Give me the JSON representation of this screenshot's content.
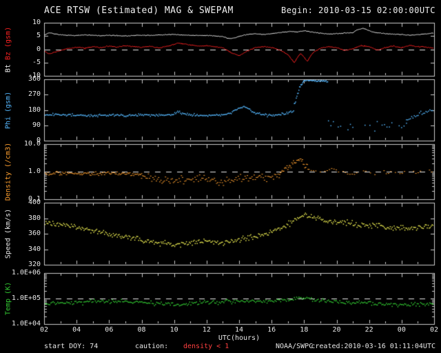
{
  "header": {
    "title": "ACE RTSW (Estimated) MAG & SWEPAM",
    "begin": "Begin: 2010-03-15 02:00:00UTC"
  },
  "footer": {
    "start_doy": "start DOY: 74",
    "caution_label": "caution:",
    "caution_value": "density < 1",
    "agency": "NOAA/SWPC",
    "created": "created:2010-03-16 01:11:04UTC"
  },
  "xaxis": {
    "label": "UTC(hours)",
    "xlim": [
      2,
      26
    ],
    "ticks": [
      2,
      4,
      6,
      8,
      10,
      12,
      14,
      16,
      18,
      20,
      22,
      24,
      26
    ],
    "tick_labels": [
      "02",
      "04",
      "06",
      "08",
      "10",
      "12",
      "14",
      "16",
      "18",
      "20",
      "22",
      "00",
      "02"
    ]
  },
  "colors": {
    "background": "#000000",
    "frame": "#cccccc",
    "dashed": "#e8e8e8",
    "caution": "#ff4040",
    "bt": "#f0f0f0",
    "bz": "#ff2222",
    "phi": "#55b8ff",
    "density": "#ffa030",
    "speed": "#e8e850",
    "temp": "#33cc33"
  },
  "chart_data": [
    {
      "id": "mag",
      "type": "line",
      "ylabel": "Bt Bz (gsm)",
      "ylabel_parts": [
        {
          "text": "Bt ",
          "color": "#f0f0f0"
        },
        {
          "text": "Bz ",
          "color": "#ff2222"
        },
        {
          "text": "(gsm)",
          "color": "#ff2222"
        }
      ],
      "yscale": "linear",
      "ylim": [
        -10,
        10
      ],
      "yticks": [
        10,
        5,
        0,
        -5,
        -10
      ],
      "ytick_labels": [
        "10",
        "5",
        "0",
        "-5",
        "-10"
      ],
      "dashed": [
        0
      ],
      "series": [
        {
          "name": "Bt",
          "color": "#f0f0f0",
          "style": "line",
          "noise": 0.18,
          "step": 0.04,
          "x": [
            2,
            2.3,
            2.6,
            3,
            3.5,
            4,
            4.5,
            5,
            5.5,
            6,
            6.5,
            7,
            7.5,
            8,
            8.5,
            9,
            9.5,
            10,
            10.5,
            11,
            11.5,
            12,
            12.5,
            13,
            13.4,
            13.8,
            14.2,
            14.6,
            15,
            15.5,
            16,
            16.4,
            16.8,
            17.2,
            17.6,
            18,
            18.4,
            18.8,
            19.2,
            19.6,
            20,
            20.5,
            21,
            21.3,
            21.6,
            21.9,
            22.2,
            22.5,
            23,
            23.5,
            24,
            24.5,
            25,
            25.5,
            26
          ],
          "y": [
            5.2,
            6.3,
            5.9,
            5.5,
            5.3,
            5.2,
            5.4,
            5.3,
            5.1,
            5.3,
            5.2,
            5.0,
            5.2,
            5.3,
            5.2,
            5.4,
            5.5,
            5.6,
            5.4,
            5.3,
            5.2,
            5.2,
            5.0,
            4.8,
            4.0,
            4.4,
            5.2,
            5.7,
            5.8,
            5.6,
            5.9,
            6.2,
            6.5,
            6.7,
            6.5,
            7.0,
            6.6,
            6.2,
            5.9,
            5.7,
            5.9,
            6.1,
            6.3,
            7.4,
            7.9,
            7.3,
            6.6,
            6.2,
            5.9,
            5.7,
            5.5,
            5.3,
            5.5,
            5.8,
            6.1
          ]
        },
        {
          "name": "Bz",
          "color": "#ff2222",
          "style": "line",
          "noise": 0.25,
          "step": 0.04,
          "x": [
            2,
            2.3,
            2.6,
            3,
            3.5,
            4,
            4.5,
            5,
            5.5,
            6,
            6.5,
            7,
            7.5,
            8,
            8.5,
            9,
            9.5,
            10,
            10.3,
            10.6,
            11,
            11.5,
            12,
            12.5,
            13,
            13.3,
            13.6,
            14,
            14.3,
            14.6,
            15,
            15.5,
            16,
            16.3,
            16.6,
            17,
            17.2,
            17.4,
            17.6,
            17.8,
            18,
            18.2,
            18.4,
            18.6,
            19,
            19.5,
            20,
            20.5,
            21,
            21.5,
            22,
            22.5,
            23,
            23.5,
            24,
            24.5,
            25,
            25.5,
            26
          ],
          "y": [
            -0.5,
            -1.8,
            -1.2,
            -0.5,
            0.3,
            0.8,
            0.4,
            1.0,
            0.6,
            1.2,
            0.8,
            1.4,
            1.0,
            0.8,
            1.2,
            0.6,
            1.0,
            1.8,
            2.4,
            2.0,
            1.6,
            1.2,
            1.4,
            1.0,
            0.6,
            -0.4,
            -1.6,
            -2.4,
            -1.4,
            -0.4,
            0.6,
            1.0,
            0.6,
            0.2,
            -0.6,
            -2.0,
            -3.5,
            -5.0,
            -3.0,
            -1.5,
            -3.0,
            -4.5,
            -2.5,
            -1.0,
            0.4,
            1.0,
            0.6,
            -0.4,
            0.2,
            1.4,
            1.0,
            -0.3,
            0.6,
            1.2,
            0.6,
            1.4,
            1.0,
            0.8,
            0.5
          ]
        }
      ]
    },
    {
      "id": "phi",
      "type": "scatter",
      "ylabel": "Phi (gsm)",
      "ylabel_parts": [
        {
          "text": "Phi (gsm)",
          "color": "#55b8ff"
        }
      ],
      "yscale": "linear",
      "ylim": [
        0,
        360
      ],
      "yticks": [
        360,
        270,
        180,
        90,
        0
      ],
      "ytick_labels": [
        "360",
        "270",
        "180",
        "90",
        "0"
      ],
      "dashed": [],
      "clampY": [
        2,
        358
      ],
      "series": [
        {
          "name": "phi-quiet",
          "color": "#55b8ff",
          "style": "scatter",
          "jitter": 8,
          "step": 0.06,
          "x": [
            2,
            3,
            4,
            5,
            6,
            7,
            8,
            9,
            10,
            10.3,
            10.6,
            11,
            12,
            13,
            13.5,
            14,
            14.3,
            14.6,
            15,
            15.5,
            16,
            16.5,
            17,
            17.4
          ],
          "y": [
            150,
            152,
            148,
            146,
            150,
            148,
            152,
            150,
            154,
            170,
            156,
            152,
            148,
            150,
            162,
            188,
            202,
            182,
            162,
            152,
            148,
            154,
            162,
            176
          ]
        },
        {
          "name": "phi-rise",
          "color": "#55b8ff",
          "style": "scatter",
          "jitter": 10,
          "step": 0.04,
          "x": [
            17.4,
            17.6,
            17.8,
            18
          ],
          "y": [
            210,
            275,
            325,
            352
          ]
        },
        {
          "name": "phi-high",
          "color": "#55b8ff",
          "style": "scatter",
          "jitter": 8,
          "step": 0.05,
          "x": [
            18,
            18.4,
            18.8,
            19.2,
            19.5
          ],
          "y": [
            352,
            357,
            349,
            353,
            342
          ]
        },
        {
          "name": "phi-scatter",
          "color": "#55b8ff",
          "style": "scatter",
          "jitter": 30,
          "step": 0.15,
          "skip": 0.35,
          "x": [
            19.5,
            20,
            20.5,
            21,
            21.5,
            22,
            22.5,
            23,
            23.5,
            24,
            24.3
          ],
          "y": [
            120,
            95,
            80,
            70,
            85,
            75,
            90,
            80,
            95,
            85,
            100
          ]
        },
        {
          "name": "phi-end",
          "color": "#55b8ff",
          "style": "scatter",
          "jitter": 13,
          "step": 0.08,
          "x": [
            24.3,
            24.8,
            25.2,
            25.6,
            26
          ],
          "y": [
            115,
            140,
            162,
            172,
            178
          ]
        }
      ]
    },
    {
      "id": "density",
      "type": "scatter",
      "ylabel": "Density (/cm3)",
      "ylabel_parts": [
        {
          "text": "Density (/cm3)",
          "color": "#ffa030"
        }
      ],
      "yscale": "log",
      "ylim": [
        0.1,
        10
      ],
      "yticks": [
        10,
        1,
        0.1
      ],
      "ytick_labels": [
        "10.0",
        "1.0",
        "0.1"
      ],
      "dashed": [
        1
      ],
      "series": [
        {
          "name": "density-early",
          "color": "#ffa030",
          "style": "scatter",
          "jitter": 0.07,
          "step": 0.06,
          "dot": [
            2,
            1
          ],
          "x": [
            2,
            3,
            4,
            5,
            6,
            7,
            8
          ],
          "y": [
            0.85,
            0.9,
            0.8,
            0.85,
            0.9,
            0.85,
            0.8
          ]
        },
        {
          "name": "density-low",
          "color": "#ffa030",
          "style": "scatter",
          "jitter": 0.16,
          "step": 0.07,
          "dot": [
            2,
            1
          ],
          "x": [
            8,
            9,
            10,
            11,
            12,
            13,
            14,
            15,
            16,
            16.5
          ],
          "y": [
            0.6,
            0.5,
            0.45,
            0.55,
            0.5,
            0.45,
            0.55,
            0.6,
            0.65,
            0.7
          ]
        },
        {
          "name": "density-spike",
          "color": "#ffa030",
          "style": "scatter",
          "jitter": 0.12,
          "step": 0.05,
          "dot": [
            2,
            1
          ],
          "x": [
            16.5,
            17,
            17.4,
            17.8,
            18,
            18.3
          ],
          "y": [
            0.9,
            1.3,
            2.2,
            2.9,
            1.8,
            1.4
          ]
        },
        {
          "name": "density-late",
          "color": "#ffa030",
          "style": "scatter",
          "jitter": 0.1,
          "step": 0.14,
          "skip": 0.35,
          "dot": [
            2,
            1
          ],
          "x": [
            18.3,
            19,
            20,
            21,
            22,
            23,
            24,
            25,
            26
          ],
          "y": [
            1.2,
            1.0,
            1.1,
            0.9,
            1.0,
            0.85,
            0.95,
            1.0,
            1.1
          ]
        }
      ]
    },
    {
      "id": "speed",
      "type": "scatter",
      "ylabel": "Speed (km/s)",
      "ylabel_parts": [
        {
          "text": "Speed (km/s)",
          "color": "#e8e8e8"
        }
      ],
      "yscale": "linear",
      "ylim": [
        320,
        400
      ],
      "yticks": [
        400,
        380,
        360,
        340,
        320
      ],
      "ytick_labels": [
        "400",
        "380",
        "360",
        "340",
        "320"
      ],
      "dashed": [],
      "series": [
        {
          "name": "speed",
          "color": "#e8e850",
          "style": "scatter",
          "jitter": 4,
          "step": 0.06,
          "x": [
            2,
            3,
            4,
            5,
            6,
            7,
            8,
            9,
            10,
            11,
            12,
            13,
            14,
            15,
            16,
            16.5,
            17,
            17.5,
            18,
            18.5,
            19,
            19.5,
            20,
            21,
            22,
            23,
            24,
            25,
            26
          ],
          "y": [
            374,
            372,
            368,
            364,
            360,
            356,
            352,
            348,
            346,
            348,
            350,
            348,
            352,
            356,
            362,
            366,
            372,
            378,
            384,
            382,
            378,
            376,
            375,
            373,
            371,
            368,
            367,
            368,
            371
          ]
        }
      ]
    },
    {
      "id": "temp",
      "type": "scatter",
      "ylabel": "Temp (K)",
      "ylabel_parts": [
        {
          "text": "Temp (K)",
          "color": "#33cc33"
        }
      ],
      "yscale": "log",
      "ylim": [
        10000,
        1000000
      ],
      "yticks": [
        1000000,
        100000,
        10000
      ],
      "ytick_labels": [
        "1.0E+06",
        "1.0E+05",
        "1.0E+04"
      ],
      "dashed": [
        100000
      ],
      "series": [
        {
          "name": "temperature",
          "color": "#33cc33",
          "style": "scatter",
          "jitter": 0.1,
          "step": 0.07,
          "x": [
            2,
            3,
            4,
            5,
            6,
            7,
            8,
            9,
            10,
            11,
            12,
            13,
            14,
            15,
            16,
            17,
            18,
            18.5,
            19,
            20,
            21,
            22,
            23,
            24,
            25,
            26
          ],
          "y": [
            60000,
            65000,
            70000,
            75000,
            80000,
            75000,
            70000,
            65000,
            60000,
            65000,
            70000,
            75000,
            80000,
            75000,
            80000,
            90000,
            105000,
            95000,
            85000,
            75000,
            65000,
            70000,
            60000,
            55000,
            60000,
            65000
          ]
        }
      ]
    }
  ]
}
